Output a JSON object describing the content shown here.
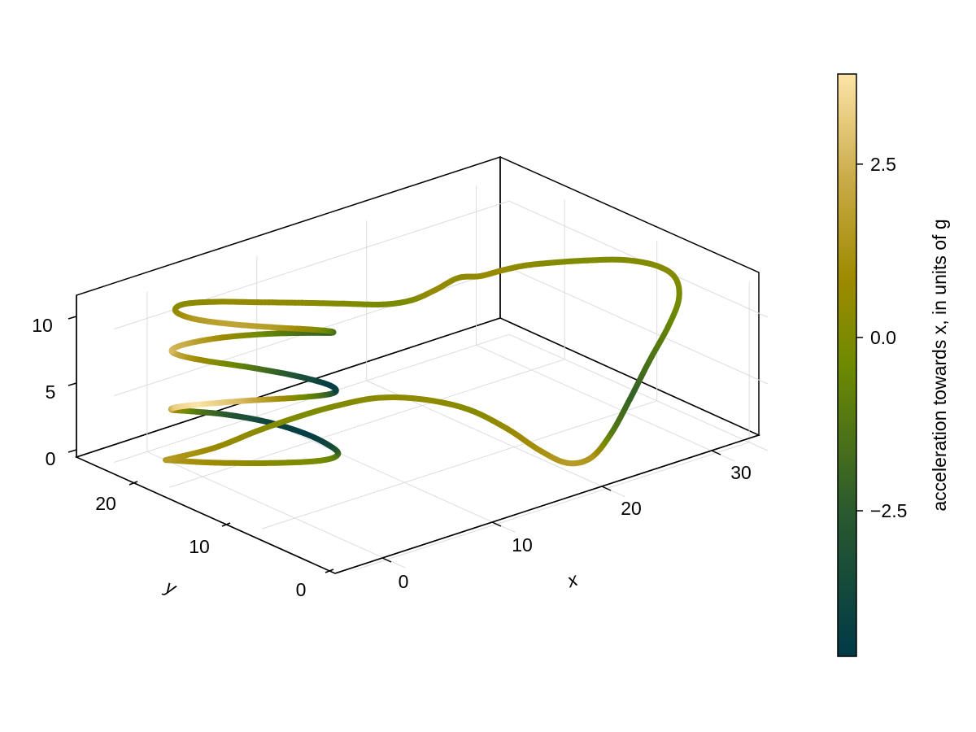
{
  "chart_data": {
    "type": "line3d",
    "title": "",
    "xlabel": "x",
    "ylabel": "y",
    "zlabel": "",
    "x_ticks": [
      "0",
      "10",
      "20",
      "30"
    ],
    "y_ticks": [
      "0",
      "10",
      "20"
    ],
    "z_ticks": [
      "0",
      "5",
      "10"
    ],
    "xlim": [
      -3,
      33
    ],
    "ylim": [
      -2,
      26
    ],
    "zlim": [
      0,
      12
    ],
    "grid": true,
    "colorbar": {
      "label": "acceleration towards x, in units of g",
      "ticks": [
        "−2.5",
        "0.0",
        "2.5"
      ],
      "tick_values": [
        -2.5,
        0.0,
        2.5
      ],
      "range": [
        -4.6,
        3.8
      ],
      "colormap": [
        "#003a47",
        "#2a5a2e",
        "#6e8a00",
        "#9e8a00",
        "#c9ab48",
        "#fde4a8"
      ]
    },
    "path": [
      {
        "x": 0.0,
        "y": 24.0,
        "z": 0.0,
        "c": 1.6
      },
      {
        "x": 2.0,
        "y": 21.0,
        "z": 0.2,
        "c": 0.9
      },
      {
        "x": 4.5,
        "y": 17.5,
        "z": 0.6,
        "c": 0.2
      },
      {
        "x": 6.5,
        "y": 14.8,
        "z": 1.1,
        "c": -0.1
      },
      {
        "x": 7.3,
        "y": 14.0,
        "z": 1.6,
        "c": -1.2
      },
      {
        "x": 7.1,
        "y": 14.8,
        "z": 2.1,
        "c": -3.6
      },
      {
        "x": 6.4,
        "y": 16.6,
        "z": 2.6,
        "c": -4.4
      },
      {
        "x": 5.0,
        "y": 18.9,
        "z": 3.1,
        "c": -4.0
      },
      {
        "x": 2.9,
        "y": 20.9,
        "z": 3.6,
        "c": -2.7
      },
      {
        "x": 0.8,
        "y": 22.2,
        "z": 4.0,
        "c": -1.0
      },
      {
        "x": -0.5,
        "y": 22.7,
        "z": 4.3,
        "c": 1.2
      },
      {
        "x": -0.4,
        "y": 22.3,
        "z": 4.6,
        "c": 3.2
      },
      {
        "x": 0.8,
        "y": 21.0,
        "z": 4.9,
        "c": 3.8
      },
      {
        "x": 3.0,
        "y": 18.7,
        "z": 5.3,
        "c": 2.6
      },
      {
        "x": 5.2,
        "y": 16.2,
        "z": 5.7,
        "c": 0.5
      },
      {
        "x": 6.8,
        "y": 14.4,
        "z": 6.1,
        "c": -2.0
      },
      {
        "x": 7.1,
        "y": 14.0,
        "z": 6.5,
        "c": -3.9
      },
      {
        "x": 6.6,
        "y": 14.7,
        "z": 6.9,
        "c": -4.4
      },
      {
        "x": 5.2,
        "y": 16.6,
        "z": 7.3,
        "c": -3.0
      },
      {
        "x": 3.2,
        "y": 18.9,
        "z": 7.7,
        "c": -1.2
      },
      {
        "x": 1.1,
        "y": 20.9,
        "z": 8.1,
        "c": 0.4
      },
      {
        "x": -0.3,
        "y": 22.2,
        "z": 8.5,
        "c": 1.8
      },
      {
        "x": -0.5,
        "y": 22.7,
        "z": 8.8,
        "c": 2.7
      },
      {
        "x": 0.6,
        "y": 22.3,
        "z": 9.1,
        "c": 2.3
      },
      {
        "x": 2.7,
        "y": 21.0,
        "z": 9.4,
        "c": 1.0
      },
      {
        "x": 4.9,
        "y": 18.7,
        "z": 9.8,
        "c": -0.5
      },
      {
        "x": 6.6,
        "y": 16.2,
        "z": 10.2,
        "c": -1.8
      },
      {
        "x": 7.1,
        "y": 14.5,
        "z": 10.6,
        "c": -2.3
      },
      {
        "x": 6.6,
        "y": 14.0,
        "z": 11.0,
        "c": -1.3
      },
      {
        "x": 5.3,
        "y": 14.6,
        "z": 11.3,
        "c": 0.3
      },
      {
        "x": 3.5,
        "y": 16.3,
        "z": 11.4,
        "c": 1.5
      },
      {
        "x": 1.4,
        "y": 18.6,
        "z": 11.5,
        "c": 2.0
      },
      {
        "x": -0.1,
        "y": 20.8,
        "z": 11.6,
        "c": 1.6
      },
      {
        "x": -0.5,
        "y": 22.3,
        "z": 11.8,
        "c": 0.8
      },
      {
        "x": 0.4,
        "y": 22.6,
        "z": 12.0,
        "c": 0.3
      },
      {
        "x": 2.4,
        "y": 21.5,
        "z": 12.0,
        "c": 0.5
      },
      {
        "x": 4.6,
        "y": 19.5,
        "z": 12.0,
        "c": 0.6
      },
      {
        "x": 6.9,
        "y": 17.4,
        "z": 12.0,
        "c": 0.4
      },
      {
        "x": 9.0,
        "y": 15.4,
        "z": 12.0,
        "c": 0.1
      },
      {
        "x": 11.0,
        "y": 13.5,
        "z": 12.0,
        "c": -0.1
      },
      {
        "x": 13.0,
        "y": 12.8,
        "z": 12.0,
        "c": 0.0
      },
      {
        "x": 15.0,
        "y": 12.6,
        "z": 12.3,
        "c": 0.7
      },
      {
        "x": 17.0,
        "y": 12.5,
        "z": 12.7,
        "c": 0.4
      },
      {
        "x": 19.0,
        "y": 12.5,
        "z": 12.3,
        "c": 0.6
      },
      {
        "x": 21.0,
        "y": 12.5,
        "z": 12.2,
        "c": 0.7
      },
      {
        "x": 23.0,
        "y": 12.3,
        "z": 12.1,
        "c": 0.4
      },
      {
        "x": 25.0,
        "y": 11.6,
        "z": 12.0,
        "c": 0.2
      },
      {
        "x": 27.0,
        "y": 10.4,
        "z": 12.0,
        "c": 0.1
      },
      {
        "x": 29.0,
        "y": 8.8,
        "z": 12.0,
        "c": 0.1
      },
      {
        "x": 30.5,
        "y": 7.1,
        "z": 11.7,
        "c": 0.2
      },
      {
        "x": 31.2,
        "y": 5.9,
        "z": 11.0,
        "c": 0.2
      },
      {
        "x": 30.8,
        "y": 5.0,
        "z": 9.8,
        "c": -0.1
      },
      {
        "x": 29.5,
        "y": 4.6,
        "z": 8.2,
        "c": -0.6
      },
      {
        "x": 27.5,
        "y": 4.3,
        "z": 6.2,
        "c": -1.4
      },
      {
        "x": 25.5,
        "y": 4.0,
        "z": 4.0,
        "c": -2.2
      },
      {
        "x": 23.5,
        "y": 3.7,
        "z": 2.0,
        "c": -1.2
      },
      {
        "x": 21.5,
        "y": 3.5,
        "z": 0.8,
        "c": 1.3
      },
      {
        "x": 19.5,
        "y": 3.7,
        "z": 0.9,
        "c": 1.7
      },
      {
        "x": 17.5,
        "y": 4.3,
        "z": 2.2,
        "c": 1.2
      },
      {
        "x": 15.5,
        "y": 5.5,
        "z": 4.0,
        "c": 0.7
      },
      {
        "x": 13.5,
        "y": 7.3,
        "z": 5.4,
        "c": 0.2
      },
      {
        "x": 11.5,
        "y": 9.8,
        "z": 5.9,
        "c": 0.5
      },
      {
        "x": 9.5,
        "y": 12.2,
        "z": 5.8,
        "c": 0.4
      },
      {
        "x": 7.5,
        "y": 14.3,
        "z": 5.1,
        "c": 0.1
      },
      {
        "x": 5.5,
        "y": 16.2,
        "z": 4.2,
        "c": 0.0
      },
      {
        "x": 3.5,
        "y": 18.3,
        "z": 3.0,
        "c": 0.3
      },
      {
        "x": 1.5,
        "y": 20.5,
        "z": 1.6,
        "c": 0.7
      },
      {
        "x": 0.0,
        "y": 24.0,
        "z": 0.0,
        "c": 1.6
      }
    ]
  }
}
